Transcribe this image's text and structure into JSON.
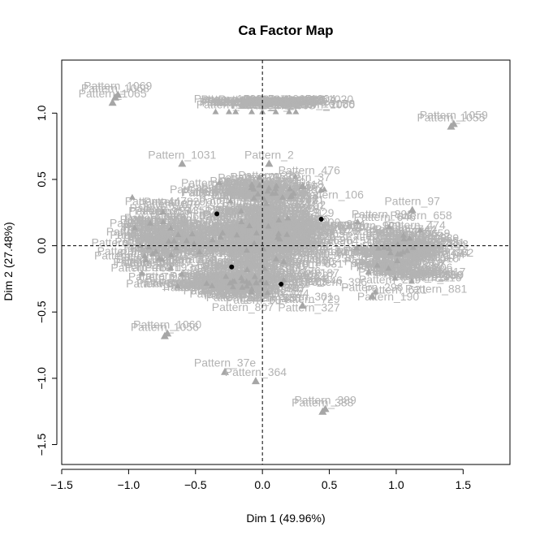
{
  "chart_data": {
    "type": "scatter",
    "title": "Ca Factor Map",
    "xlabel": "Dim 1 (49.96%)",
    "ylabel": "Dim 2 (27.48%)",
    "xlim": [
      -1.5,
      1.85
    ],
    "ylim": [
      -1.65,
      1.4
    ],
    "xticks": [
      -1.5,
      -1.0,
      -0.5,
      0.0,
      0.5,
      1.0,
      1.5
    ],
    "yticks": [
      -1.5,
      -1.0,
      -0.5,
      0.0,
      0.5,
      1.0
    ],
    "xtick_labels": [
      "−1.5",
      "−1.0",
      "−0.5",
      "0.0",
      "0.5",
      "1.0",
      "1.5"
    ],
    "ytick_labels": [
      "−1.5",
      "−1.0",
      "−0.5",
      "0.0",
      "0.5",
      "1.0"
    ],
    "reference_lines": {
      "x": 0,
      "y": 0,
      "style": "dashed"
    },
    "grid": false,
    "colors": {
      "row_points": "#000000",
      "column_points": "#a6a6a6",
      "labels": "#b3b3b3"
    },
    "row_points": [
      {
        "x": -0.34,
        "y": 0.24
      },
      {
        "x": 0.44,
        "y": 0.2
      },
      {
        "x": -0.23,
        "y": -0.16
      },
      {
        "x": 0.14,
        "y": -0.29
      }
    ],
    "column_points_labeled": [
      {
        "label": "Pattern_1065",
        "x": -1.12,
        "y": 1.08
      },
      {
        "label": "Pattern_1068",
        "x": -1.1,
        "y": 1.12
      },
      {
        "label": "Pattern_1069",
        "x": -1.08,
        "y": 1.14
      },
      {
        "label": "Pattern_1055",
        "x": 1.41,
        "y": 0.9
      },
      {
        "label": "Pattern_1059",
        "x": 1.43,
        "y": 0.92
      },
      {
        "label": "Pattern_1031",
        "x": -0.6,
        "y": 0.62
      },
      {
        "label": "Pattern_2",
        "x": 0.05,
        "y": 0.62
      },
      {
        "label": "Pattern_37",
        "x": 0.3,
        "y": 0.45
      },
      {
        "label": "Pattern_97",
        "x": 1.12,
        "y": 0.27
      },
      {
        "label": "Pattern_296",
        "x": 0.82,
        "y": -0.38
      },
      {
        "label": "Pattern_301",
        "x": 0.3,
        "y": -0.45
      },
      {
        "label": "Pattern_1056",
        "x": -0.73,
        "y": -0.68
      },
      {
        "label": "Pattern_1060",
        "x": -0.71,
        "y": -0.66
      },
      {
        "label": "Pattern_37e",
        "x": -0.28,
        "y": -0.95
      },
      {
        "label": "Pattern_364",
        "x": -0.05,
        "y": -1.02
      },
      {
        "label": "Pattern_388",
        "x": 0.45,
        "y": -1.25
      },
      {
        "label": "Pattern_389",
        "x": 0.47,
        "y": -1.23
      }
    ]
  }
}
